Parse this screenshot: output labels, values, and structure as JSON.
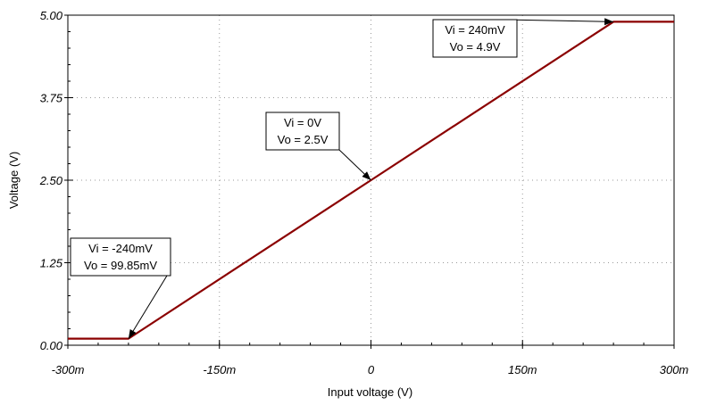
{
  "chart_data": {
    "type": "line",
    "xlabel": "Input voltage (V)",
    "ylabel": "Voltage (V)",
    "xlim": [
      -0.3,
      0.3
    ],
    "ylim": [
      0,
      5
    ],
    "x_ticks": [
      -0.3,
      -0.15,
      0,
      0.15,
      0.3
    ],
    "x_tick_labels": [
      "-300m",
      "-150m",
      "0",
      "150m",
      "300m"
    ],
    "y_ticks": [
      0,
      1.25,
      2.5,
      3.75,
      5
    ],
    "y_tick_labels": [
      "0.00",
      "1.25",
      "2.50",
      "3.75",
      "5.00"
    ],
    "grid": true,
    "series": [
      {
        "color": "#8b0000",
        "x": [
          -0.3,
          -0.24,
          0,
          0.24,
          0.3
        ],
        "y": [
          0.09985,
          0.09985,
          2.5,
          4.9,
          4.9
        ]
      }
    ],
    "annotations": [
      {
        "lines": [
          "Vi = 240mV",
          "Vo = 4.9V"
        ],
        "point": [
          0.24,
          4.9
        ]
      },
      {
        "lines": [
          "Vi = 0V",
          "Vo = 2.5V"
        ],
        "point": [
          0,
          2.5
        ]
      },
      {
        "lines": [
          "Vi = -240mV",
          "Vo = 99.85mV"
        ],
        "point": [
          -0.24,
          0.09985
        ]
      }
    ]
  }
}
